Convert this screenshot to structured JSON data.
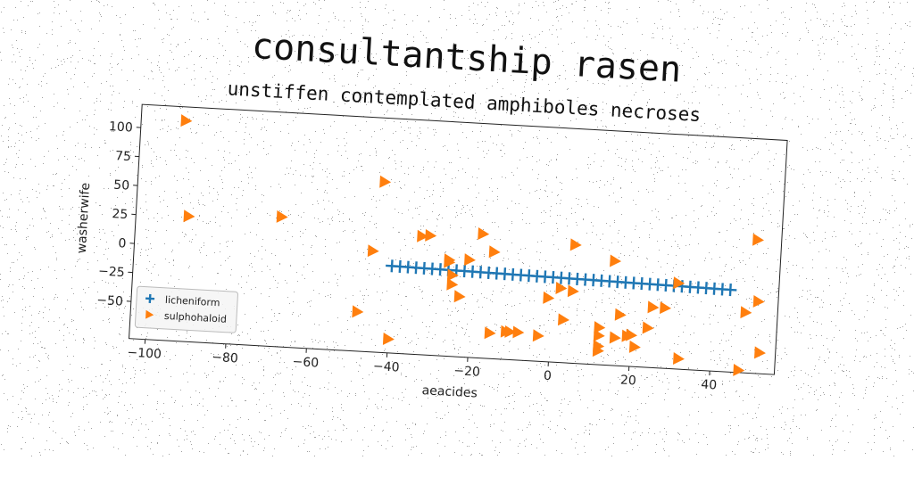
{
  "chart_data": {
    "type": "scatter",
    "title": "consultantship rasen",
    "subtitle": "unstiffen contemplated amphiboles necroses",
    "xlabel": "aeacides",
    "ylabel": "washerwife",
    "xlim": [
      -104,
      56
    ],
    "ylim": [
      -82,
      120
    ],
    "xticks": [
      -100,
      -80,
      -60,
      -40,
      -20,
      0,
      20,
      40
    ],
    "yticks": [
      -50,
      -25,
      0,
      25,
      50,
      75,
      100
    ],
    "grid": false,
    "legend_position": "lower-left",
    "series": [
      {
        "name": "licheniform",
        "marker": "plus",
        "color": "#1f77b4",
        "x": [
          -40,
          -38,
          -36,
          -34,
          -32,
          -30,
          -28,
          -26,
          -24,
          -22,
          -20,
          -18,
          -16,
          -14,
          -12,
          -10,
          -8,
          -6,
          -4,
          -2,
          0,
          2,
          4,
          6,
          8,
          10,
          12,
          14,
          16,
          18,
          20,
          22,
          24,
          26,
          28,
          30,
          32,
          34,
          36,
          38,
          40,
          42,
          44
        ],
        "y": [
          -7.0,
          -7.1,
          -7.2,
          -7.3,
          -7.4,
          -7.5,
          -7.6,
          -7.7,
          -7.8,
          -7.9,
          -8.0,
          -8.1,
          -8.2,
          -8.3,
          -8.4,
          -8.5,
          -8.6,
          -8.7,
          -8.8,
          -8.9,
          -9.0,
          -9.1,
          -9.2,
          -9.3,
          -9.4,
          -9.5,
          -9.6,
          -9.7,
          -9.8,
          -9.9,
          -10.0,
          -10.1,
          -10.2,
          -10.3,
          -10.4,
          -10.5,
          -10.6,
          -10.7,
          -10.8,
          -10.9,
          -11.0,
          -11.1,
          -11.2
        ]
      },
      {
        "name": "sulphohaloid",
        "marker": "triangle-right",
        "color": "#ff7f0e",
        "x": [
          -93,
          -91,
          -68,
          -43,
          -45,
          -48,
          -40,
          -33,
          -31,
          -26,
          -26,
          -25,
          -25,
          -23,
          -21,
          -18,
          -15,
          -15,
          -11,
          -10,
          -8,
          -3,
          -1,
          2,
          3,
          5,
          5,
          12,
          12,
          12,
          12,
          15,
          16,
          17,
          19,
          20,
          21,
          24,
          25,
          28,
          31,
          32,
          47,
          48,
          50,
          51,
          52
        ],
        "y": [
          108,
          26,
          30,
          65,
          5,
          -48,
          -70,
          20,
          21,
          -1,
          1,
          -12,
          -20,
          -30,
          2,
          25,
          10,
          -60,
          -58,
          -58,
          -58,
          -60,
          -27,
          -18,
          -45,
          20,
          -20,
          -57,
          -50,
          -66,
          -70,
          8,
          -58,
          -38,
          -56,
          -55,
          -65,
          -48,
          -30,
          -30,
          -8,
          -73,
          -80,
          -30,
          33,
          -20,
          -64
        ]
      }
    ]
  }
}
